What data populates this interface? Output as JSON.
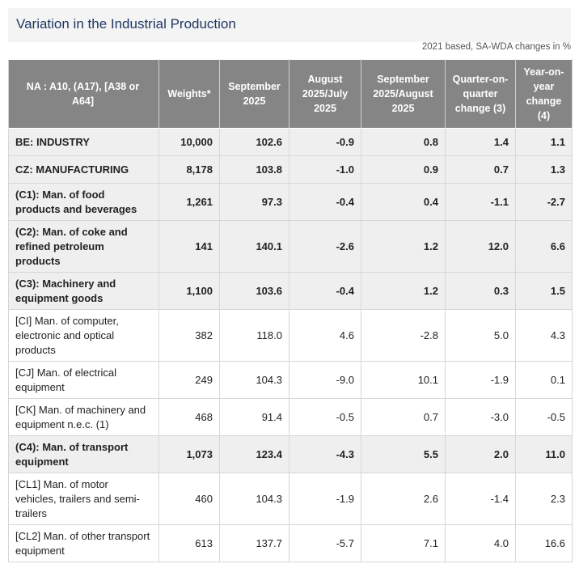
{
  "title": "Variation in the Industrial Production",
  "subtitle": "2021 based, SA-WDA changes in %",
  "headers": [
    "NA : A10, (A17), [A38 or A64]",
    "Weights*",
    "September 2025",
    "August 2025/July 2025",
    "September 2025/August 2025",
    "Quarter-on-quarter change (3)",
    "Year-on-year change (4)"
  ],
  "rows": [
    {
      "label": "BE: INDUSTRY",
      "weights": "10,000",
      "sep": "102.6",
      "aug_jul": "-0.9",
      "sep_aug": "0.8",
      "qoq": "1.4",
      "yoy": "1.1",
      "bold": true
    },
    {
      "label": "CZ: MANUFACTURING",
      "weights": "8,178",
      "sep": "103.8",
      "aug_jul": "-1.0",
      "sep_aug": "0.9",
      "qoq": "0.7",
      "yoy": "1.3",
      "bold": true
    },
    {
      "label": "(C1): Man. of food products and beverages",
      "weights": "1,261",
      "sep": "97.3",
      "aug_jul": "-0.4",
      "sep_aug": "0.4",
      "qoq": "-1.1",
      "yoy": "-2.7",
      "bold": true
    },
    {
      "label": "(C2): Man. of coke and refined petroleum products",
      "weights": "141",
      "sep": "140.1",
      "aug_jul": "-2.6",
      "sep_aug": "1.2",
      "qoq": "12.0",
      "yoy": "6.6",
      "bold": true
    },
    {
      "label": "(C3): Machinery and equipment goods",
      "weights": "1,100",
      "sep": "103.6",
      "aug_jul": "-0.4",
      "sep_aug": "1.2",
      "qoq": "0.3",
      "yoy": "1.5",
      "bold": true
    },
    {
      "label": "[CI] Man. of computer, electronic and optical products",
      "weights": "382",
      "sep": "118.0",
      "aug_jul": "4.6",
      "sep_aug": "-2.8",
      "qoq": "5.0",
      "yoy": "4.3",
      "bold": false
    },
    {
      "label": "[CJ] Man. of electrical equipment",
      "weights": "249",
      "sep": "104.3",
      "aug_jul": "-9.0",
      "sep_aug": "10.1",
      "qoq": "-1.9",
      "yoy": "0.1",
      "bold": false
    },
    {
      "label": "[CK] Man. of machinery and equipment n.e.c. (1)",
      "weights": "468",
      "sep": "91.4",
      "aug_jul": "-0.5",
      "sep_aug": "0.7",
      "qoq": "-3.0",
      "yoy": "-0.5",
      "bold": false
    },
    {
      "label": "(C4): Man. of transport equipment",
      "weights": "1,073",
      "sep": "123.4",
      "aug_jul": "-4.3",
      "sep_aug": "5.5",
      "qoq": "2.0",
      "yoy": "11.0",
      "bold": true
    },
    {
      "label": "[CL1] Man. of motor vehicles, trailers and semi-trailers",
      "weights": "460",
      "sep": "104.3",
      "aug_jul": "-1.9",
      "sep_aug": "2.6",
      "qoq": "-1.4",
      "yoy": "2.3",
      "bold": false
    },
    {
      "label": "[CL2] Man. of other transport equipment",
      "weights": "613",
      "sep": "137.7",
      "aug_jul": "-5.7",
      "sep_aug": "7.1",
      "qoq": "4.0",
      "yoy": "16.6",
      "bold": false
    }
  ]
}
